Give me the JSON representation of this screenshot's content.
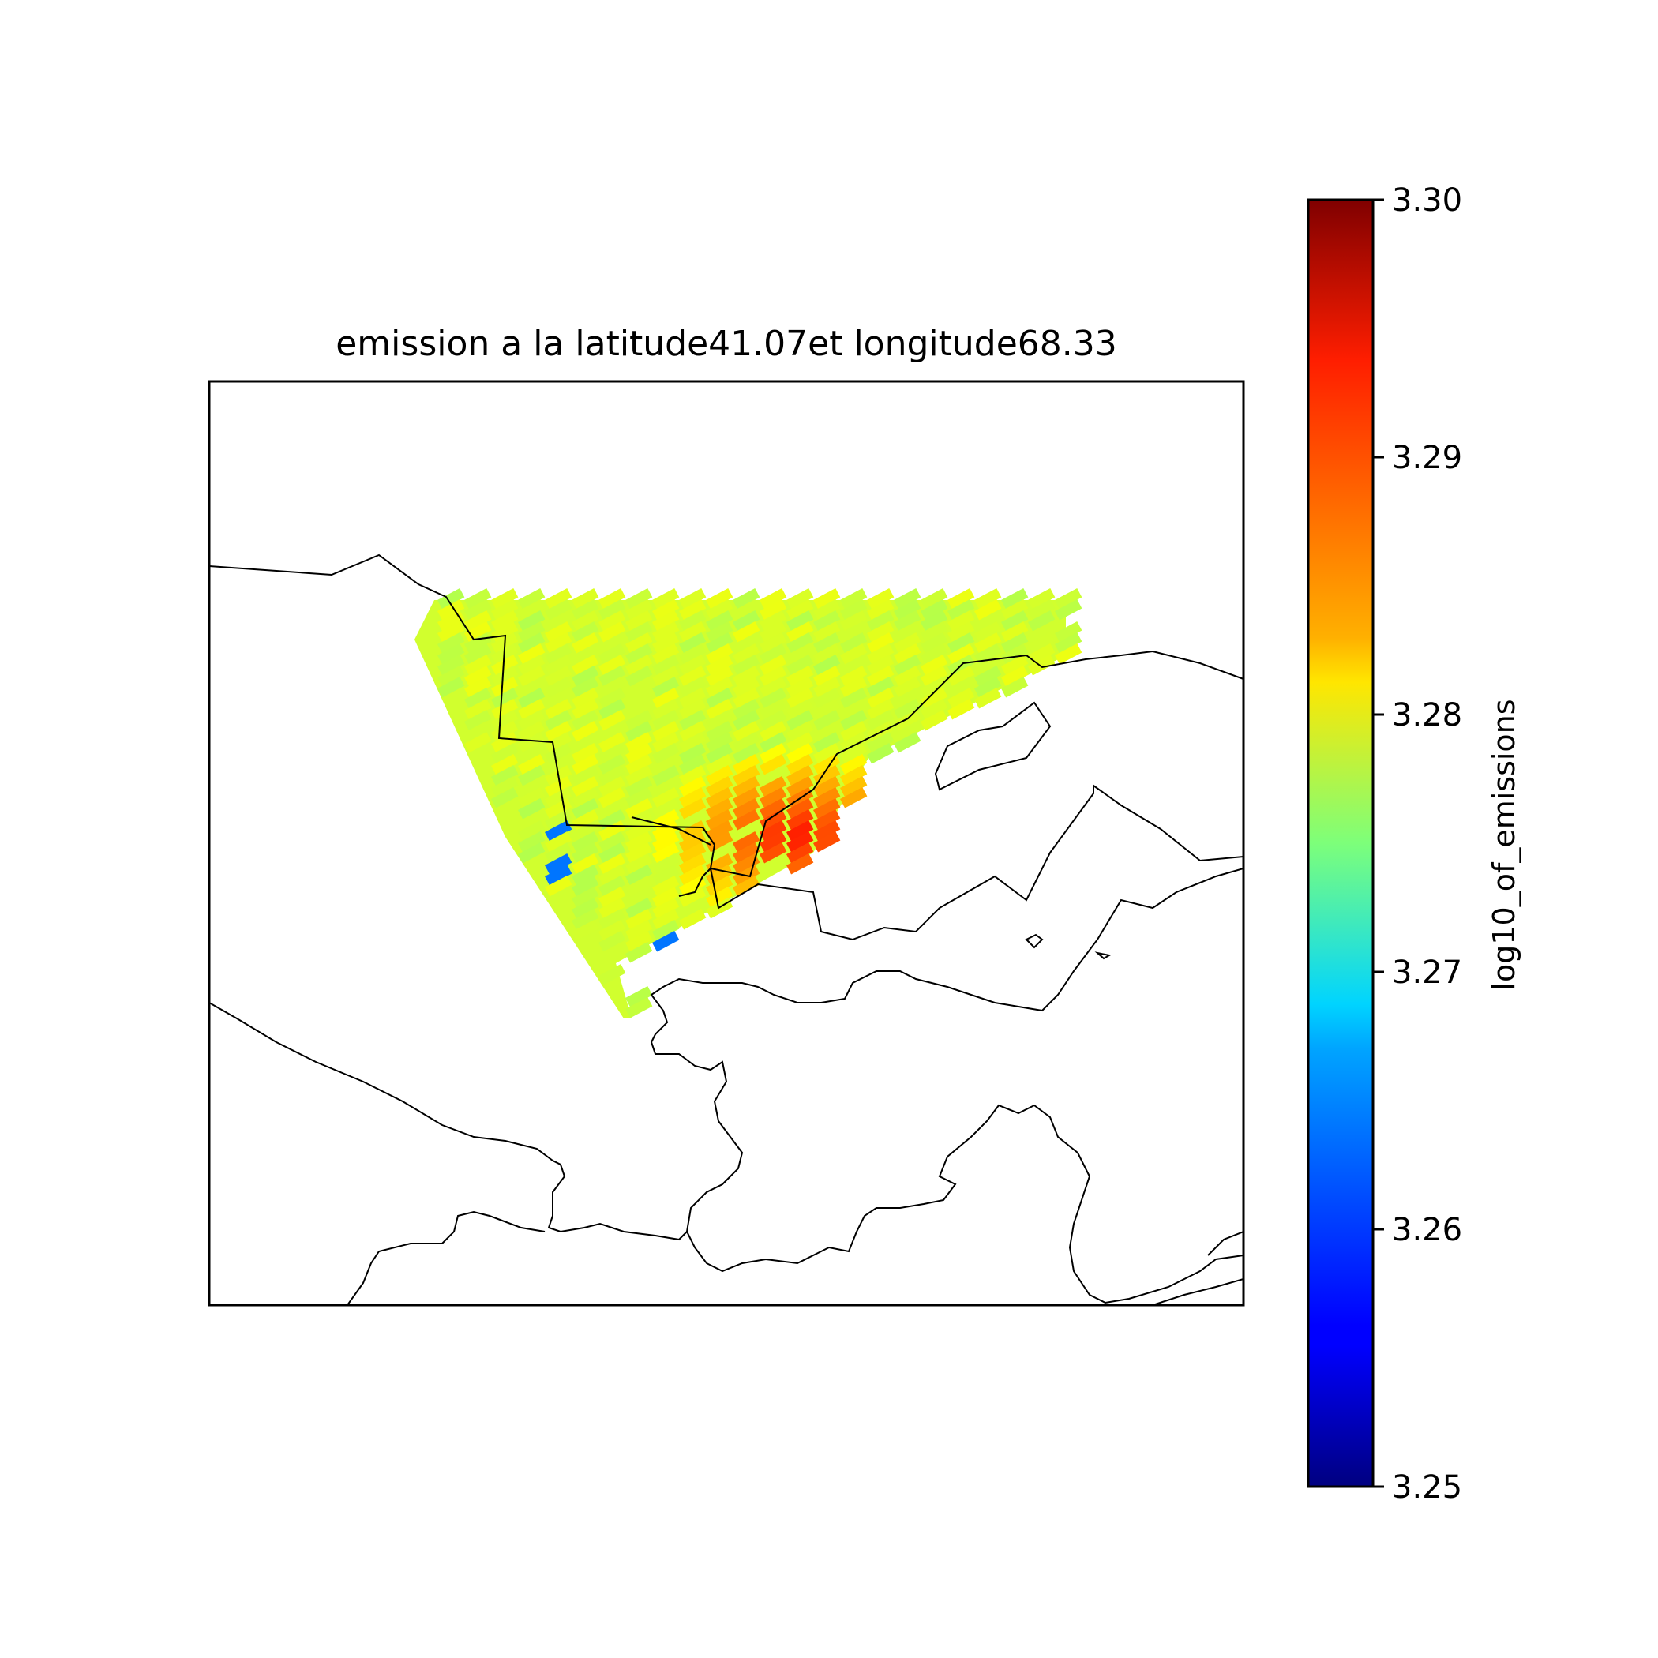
{
  "title": "emission a la latitude41.07et longitude68.33",
  "colorbar": {
    "label": "log10_of_emissions",
    "min": 3.25,
    "max": 3.3,
    "ticks": [
      "3.30",
      "3.29",
      "3.28",
      "3.27",
      "3.26",
      "3.25"
    ],
    "colormap": "jet",
    "orientation": "vertical"
  },
  "chart_data": {
    "type": "heatmap",
    "title": "emission a la latitude41.07et longitude68.33",
    "colorbar_label": "log10_of_emissions",
    "value_range": [
      3.25,
      3.3
    ],
    "colormap": "jet",
    "grid": false,
    "features": [
      "coastlines",
      "country borders"
    ],
    "hotspots": [
      {
        "region": "central",
        "value": 3.293
      },
      {
        "region": "east",
        "value": 3.291
      }
    ],
    "lowspots": [
      {
        "region": "south-west edge",
        "value": 3.262
      }
    ],
    "background_value": 3.279
  }
}
